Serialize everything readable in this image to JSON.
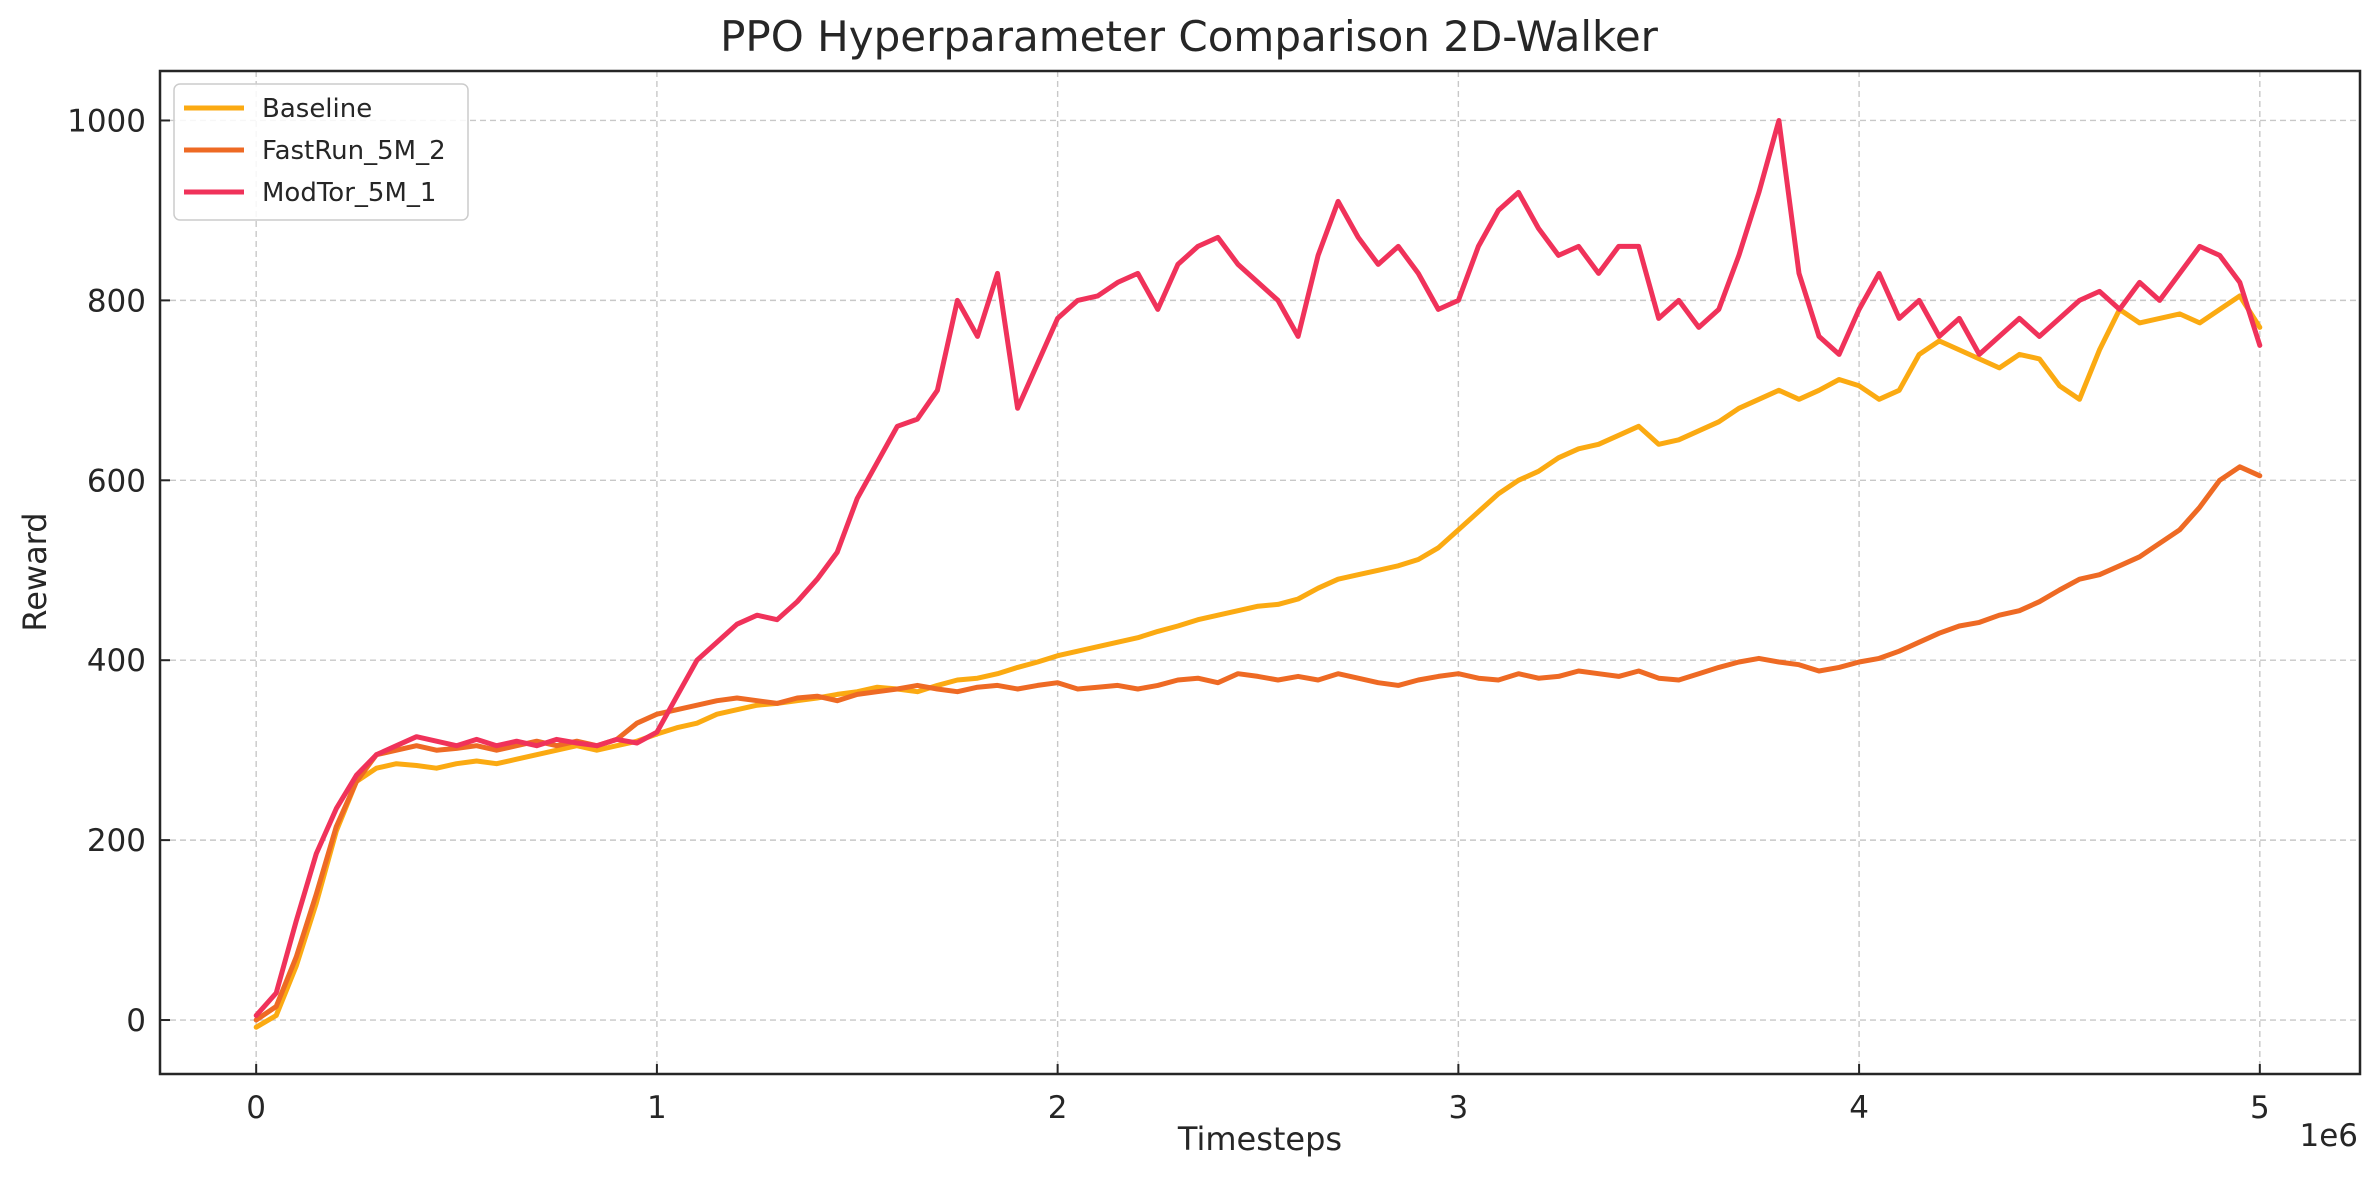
{
  "chart_data": {
    "type": "line",
    "title": "PPO Hyperparameter Comparison 2D-Walker",
    "xlabel": "Timesteps",
    "ylabel": "Reward",
    "x_offset_label": "1e6",
    "xlim": [
      -0.24,
      5.25
    ],
    "ylim": [
      -60,
      1055
    ],
    "xticks": [
      0,
      1,
      2,
      3,
      4,
      5
    ],
    "xtick_labels": [
      "0",
      "1",
      "2",
      "3",
      "4",
      "5"
    ],
    "yticks": [
      0,
      200,
      400,
      600,
      800,
      1000
    ],
    "ytick_labels": [
      "0",
      "200",
      "400",
      "600",
      "800",
      "1000"
    ],
    "grid": true,
    "legend_position": "top-left",
    "series": [
      {
        "name": "Baseline",
        "color": "#fbaa12",
        "points": [
          [
            0,
            -8
          ],
          [
            0.05,
            5
          ],
          [
            0.1,
            60
          ],
          [
            0.15,
            130
          ],
          [
            0.2,
            210
          ],
          [
            0.25,
            265
          ],
          [
            0.3,
            280
          ],
          [
            0.35,
            285
          ],
          [
            0.4,
            283
          ],
          [
            0.45,
            280
          ],
          [
            0.5,
            285
          ],
          [
            0.55,
            288
          ],
          [
            0.6,
            285
          ],
          [
            0.65,
            290
          ],
          [
            0.7,
            295
          ],
          [
            0.75,
            300
          ],
          [
            0.8,
            305
          ],
          [
            0.85,
            300
          ],
          [
            0.9,
            305
          ],
          [
            0.95,
            310
          ],
          [
            1.0,
            318
          ],
          [
            1.05,
            325
          ],
          [
            1.1,
            330
          ],
          [
            1.15,
            340
          ],
          [
            1.2,
            345
          ],
          [
            1.25,
            350
          ],
          [
            1.3,
            352
          ],
          [
            1.35,
            355
          ],
          [
            1.4,
            358
          ],
          [
            1.45,
            362
          ],
          [
            1.5,
            365
          ],
          [
            1.55,
            370
          ],
          [
            1.6,
            368
          ],
          [
            1.65,
            365
          ],
          [
            1.7,
            372
          ],
          [
            1.75,
            378
          ],
          [
            1.8,
            380
          ],
          [
            1.85,
            385
          ],
          [
            1.9,
            392
          ],
          [
            1.95,
            398
          ],
          [
            2.0,
            405
          ],
          [
            2.05,
            410
          ],
          [
            2.1,
            415
          ],
          [
            2.15,
            420
          ],
          [
            2.2,
            425
          ],
          [
            2.25,
            432
          ],
          [
            2.3,
            438
          ],
          [
            2.35,
            445
          ],
          [
            2.4,
            450
          ],
          [
            2.45,
            455
          ],
          [
            2.5,
            460
          ],
          [
            2.55,
            462
          ],
          [
            2.6,
            468
          ],
          [
            2.65,
            480
          ],
          [
            2.7,
            490
          ],
          [
            2.75,
            495
          ],
          [
            2.8,
            500
          ],
          [
            2.85,
            505
          ],
          [
            2.9,
            512
          ],
          [
            2.95,
            525
          ],
          [
            3.0,
            545
          ],
          [
            3.05,
            565
          ],
          [
            3.1,
            585
          ],
          [
            3.15,
            600
          ],
          [
            3.2,
            610
          ],
          [
            3.25,
            625
          ],
          [
            3.3,
            635
          ],
          [
            3.35,
            640
          ],
          [
            3.4,
            650
          ],
          [
            3.45,
            660
          ],
          [
            3.5,
            640
          ],
          [
            3.55,
            645
          ],
          [
            3.6,
            655
          ],
          [
            3.65,
            665
          ],
          [
            3.7,
            680
          ],
          [
            3.75,
            690
          ],
          [
            3.8,
            700
          ],
          [
            3.85,
            690
          ],
          [
            3.9,
            700
          ],
          [
            3.95,
            712
          ],
          [
            4.0,
            705
          ],
          [
            4.05,
            690
          ],
          [
            4.1,
            700
          ],
          [
            4.15,
            740
          ],
          [
            4.2,
            755
          ],
          [
            4.25,
            745
          ],
          [
            4.3,
            735
          ],
          [
            4.35,
            725
          ],
          [
            4.4,
            740
          ],
          [
            4.45,
            735
          ],
          [
            4.5,
            705
          ],
          [
            4.55,
            690
          ],
          [
            4.6,
            745
          ],
          [
            4.65,
            790
          ],
          [
            4.7,
            775
          ],
          [
            4.75,
            780
          ],
          [
            4.8,
            785
          ],
          [
            4.85,
            775
          ],
          [
            4.9,
            790
          ],
          [
            4.95,
            805
          ],
          [
            5.0,
            770
          ]
        ]
      },
      {
        "name": "FastRun_5M_2",
        "color": "#ee6a24",
        "points": [
          [
            0,
            0
          ],
          [
            0.05,
            15
          ],
          [
            0.1,
            70
          ],
          [
            0.15,
            140
          ],
          [
            0.2,
            215
          ],
          [
            0.25,
            265
          ],
          [
            0.3,
            295
          ],
          [
            0.35,
            300
          ],
          [
            0.4,
            305
          ],
          [
            0.45,
            300
          ],
          [
            0.5,
            302
          ],
          [
            0.55,
            305
          ],
          [
            0.6,
            300
          ],
          [
            0.65,
            305
          ],
          [
            0.7,
            310
          ],
          [
            0.75,
            305
          ],
          [
            0.8,
            310
          ],
          [
            0.85,
            305
          ],
          [
            0.9,
            312
          ],
          [
            0.95,
            330
          ],
          [
            1.0,
            340
          ],
          [
            1.05,
            345
          ],
          [
            1.1,
            350
          ],
          [
            1.15,
            355
          ],
          [
            1.2,
            358
          ],
          [
            1.25,
            355
          ],
          [
            1.3,
            352
          ],
          [
            1.35,
            358
          ],
          [
            1.4,
            360
          ],
          [
            1.45,
            355
          ],
          [
            1.5,
            362
          ],
          [
            1.55,
            365
          ],
          [
            1.6,
            368
          ],
          [
            1.65,
            372
          ],
          [
            1.7,
            368
          ],
          [
            1.75,
            365
          ],
          [
            1.8,
            370
          ],
          [
            1.85,
            372
          ],
          [
            1.9,
            368
          ],
          [
            1.95,
            372
          ],
          [
            2.0,
            375
          ],
          [
            2.05,
            368
          ],
          [
            2.1,
            370
          ],
          [
            2.15,
            372
          ],
          [
            2.2,
            368
          ],
          [
            2.25,
            372
          ],
          [
            2.3,
            378
          ],
          [
            2.35,
            380
          ],
          [
            2.4,
            375
          ],
          [
            2.45,
            385
          ],
          [
            2.5,
            382
          ],
          [
            2.55,
            378
          ],
          [
            2.6,
            382
          ],
          [
            2.65,
            378
          ],
          [
            2.7,
            385
          ],
          [
            2.75,
            380
          ],
          [
            2.8,
            375
          ],
          [
            2.85,
            372
          ],
          [
            2.9,
            378
          ],
          [
            2.95,
            382
          ],
          [
            3.0,
            385
          ],
          [
            3.05,
            380
          ],
          [
            3.1,
            378
          ],
          [
            3.15,
            385
          ],
          [
            3.2,
            380
          ],
          [
            3.25,
            382
          ],
          [
            3.3,
            388
          ],
          [
            3.35,
            385
          ],
          [
            3.4,
            382
          ],
          [
            3.45,
            388
          ],
          [
            3.5,
            380
          ],
          [
            3.55,
            378
          ],
          [
            3.6,
            385
          ],
          [
            3.65,
            392
          ],
          [
            3.7,
            398
          ],
          [
            3.75,
            402
          ],
          [
            3.8,
            398
          ],
          [
            3.85,
            395
          ],
          [
            3.9,
            388
          ],
          [
            3.95,
            392
          ],
          [
            4.0,
            398
          ],
          [
            4.05,
            402
          ],
          [
            4.1,
            410
          ],
          [
            4.15,
            420
          ],
          [
            4.2,
            430
          ],
          [
            4.25,
            438
          ],
          [
            4.3,
            442
          ],
          [
            4.35,
            450
          ],
          [
            4.4,
            455
          ],
          [
            4.45,
            465
          ],
          [
            4.5,
            478
          ],
          [
            4.55,
            490
          ],
          [
            4.6,
            495
          ],
          [
            4.65,
            505
          ],
          [
            4.7,
            515
          ],
          [
            4.75,
            530
          ],
          [
            4.8,
            545
          ],
          [
            4.85,
            570
          ],
          [
            4.9,
            600
          ],
          [
            4.95,
            615
          ],
          [
            5.0,
            605
          ]
        ]
      },
      {
        "name": "ModTor_5M_1",
        "color": "#f0325a",
        "points": [
          [
            0,
            5
          ],
          [
            0.05,
            30
          ],
          [
            0.1,
            110
          ],
          [
            0.15,
            185
          ],
          [
            0.2,
            235
          ],
          [
            0.25,
            272
          ],
          [
            0.3,
            295
          ],
          [
            0.35,
            305
          ],
          [
            0.4,
            315
          ],
          [
            0.45,
            310
          ],
          [
            0.5,
            305
          ],
          [
            0.55,
            312
          ],
          [
            0.6,
            305
          ],
          [
            0.65,
            310
          ],
          [
            0.7,
            305
          ],
          [
            0.75,
            312
          ],
          [
            0.8,
            308
          ],
          [
            0.85,
            305
          ],
          [
            0.9,
            312
          ],
          [
            0.95,
            308
          ],
          [
            1.0,
            320
          ],
          [
            1.05,
            360
          ],
          [
            1.1,
            400
          ],
          [
            1.15,
            420
          ],
          [
            1.2,
            440
          ],
          [
            1.25,
            450
          ],
          [
            1.3,
            445
          ],
          [
            1.35,
            465
          ],
          [
            1.4,
            490
          ],
          [
            1.45,
            520
          ],
          [
            1.5,
            580
          ],
          [
            1.55,
            620
          ],
          [
            1.6,
            660
          ],
          [
            1.65,
            668
          ],
          [
            1.7,
            700
          ],
          [
            1.75,
            800
          ],
          [
            1.8,
            760
          ],
          [
            1.85,
            830
          ],
          [
            1.9,
            680
          ],
          [
            1.95,
            730
          ],
          [
            2.0,
            780
          ],
          [
            2.05,
            800
          ],
          [
            2.1,
            805
          ],
          [
            2.15,
            820
          ],
          [
            2.2,
            830
          ],
          [
            2.25,
            790
          ],
          [
            2.3,
            840
          ],
          [
            2.35,
            860
          ],
          [
            2.4,
            870
          ],
          [
            2.45,
            840
          ],
          [
            2.5,
            820
          ],
          [
            2.55,
            800
          ],
          [
            2.6,
            760
          ],
          [
            2.65,
            850
          ],
          [
            2.7,
            910
          ],
          [
            2.75,
            870
          ],
          [
            2.8,
            840
          ],
          [
            2.85,
            860
          ],
          [
            2.9,
            830
          ],
          [
            2.95,
            790
          ],
          [
            3.0,
            800
          ],
          [
            3.05,
            860
          ],
          [
            3.1,
            900
          ],
          [
            3.15,
            920
          ],
          [
            3.2,
            880
          ],
          [
            3.25,
            850
          ],
          [
            3.3,
            860
          ],
          [
            3.35,
            830
          ],
          [
            3.4,
            860
          ],
          [
            3.45,
            860
          ],
          [
            3.5,
            780
          ],
          [
            3.55,
            800
          ],
          [
            3.6,
            770
          ],
          [
            3.65,
            790
          ],
          [
            3.7,
            850
          ],
          [
            3.75,
            920
          ],
          [
            3.8,
            1000
          ],
          [
            3.85,
            830
          ],
          [
            3.9,
            760
          ],
          [
            3.95,
            740
          ],
          [
            4.0,
            790
          ],
          [
            4.05,
            830
          ],
          [
            4.1,
            780
          ],
          [
            4.15,
            800
          ],
          [
            4.2,
            760
          ],
          [
            4.25,
            780
          ],
          [
            4.3,
            740
          ],
          [
            4.35,
            760
          ],
          [
            4.4,
            780
          ],
          [
            4.45,
            760
          ],
          [
            4.5,
            780
          ],
          [
            4.55,
            800
          ],
          [
            4.6,
            810
          ],
          [
            4.65,
            790
          ],
          [
            4.7,
            820
          ],
          [
            4.75,
            800
          ],
          [
            4.8,
            830
          ],
          [
            4.85,
            860
          ],
          [
            4.9,
            850
          ],
          [
            4.95,
            820
          ],
          [
            5.0,
            750
          ]
        ]
      }
    ]
  }
}
